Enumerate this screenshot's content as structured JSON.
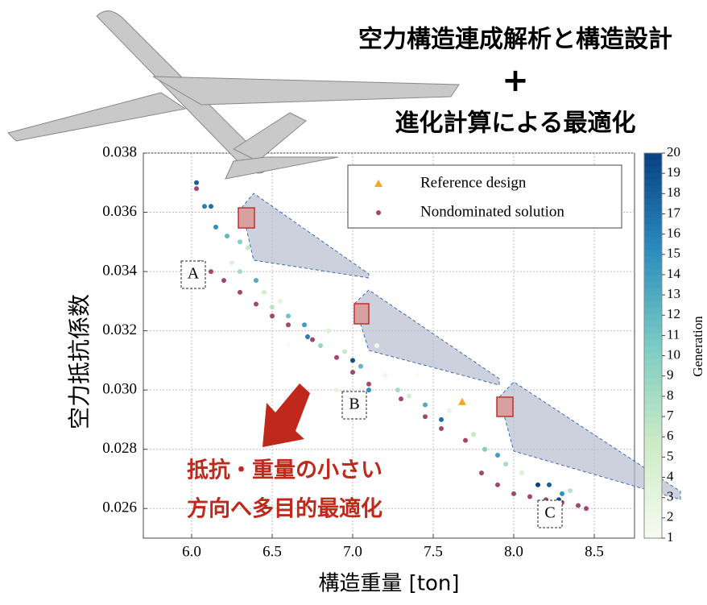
{
  "chart_data": {
    "type": "scatter",
    "title": [
      "空力構造連成解析と構造設計",
      "+",
      "進化計算による最適化"
    ],
    "x_label": "構造重量 [ton]",
    "y_label": "空力抵抗係数",
    "xlim": [
      5.7,
      8.75
    ],
    "xticks": [
      {
        "value": 6,
        "label": "6.0"
      },
      6.5,
      {
        "value": 7,
        "label": "7.0"
      },
      7.5,
      {
        "value": 8,
        "label": "8.0"
      },
      8.5
    ],
    "ylim": [
      0.025,
      0.038
    ],
    "yticks": [
      0.026,
      0.028,
      {
        "value": 0.03,
        "label": "0.030"
      },
      0.032,
      0.034,
      0.036,
      0.038
    ],
    "grid": true,
    "legend": "upper right",
    "series": [
      {
        "name": "Reference design",
        "color": "#f5a623",
        "marker": "triangle",
        "x": [
          7.68
        ],
        "values": [
          0.0296
        ]
      },
      {
        "name": "Nondominated solution",
        "color": "#a3466e",
        "marker": "circle",
        "x": [
          6.03,
          6.05,
          6.12,
          6.2,
          6.3,
          6.4,
          6.5,
          6.6,
          6.75,
          6.9,
          7.0,
          7.1,
          7.3,
          7.45,
          7.55,
          7.7,
          7.8,
          7.9,
          8.0,
          8.1,
          8.2,
          8.3,
          8.4,
          8.45
        ],
        "values": [
          0.0368,
          0.0343,
          0.034,
          0.0337,
          0.0333,
          0.0329,
          0.0325,
          0.0322,
          0.0317,
          0.0311,
          0.0306,
          0.0302,
          0.0297,
          0.0291,
          0.0287,
          0.0283,
          0.0272,
          0.0268,
          0.0265,
          0.0264,
          0.0263,
          0.0262,
          0.0261,
          0.026
        ]
      }
    ],
    "generations": {
      "x": [
        6.03,
        6.08,
        6.12,
        6.15,
        6.22,
        6.3,
        6.35,
        6.25,
        6.3,
        6.4,
        6.45,
        6.5,
        6.55,
        6.6,
        6.7,
        6.72,
        6.8,
        6.85,
        6.95,
        7.0,
        7.05,
        7.1,
        7.2,
        7.28,
        7.35,
        7.45,
        7.55,
        7.6,
        7.75,
        7.82,
        7.9,
        7.95,
        8.05,
        8.15,
        8.22,
        8.3,
        8.35,
        8.28,
        6.6,
        7.15,
        7.4,
        6.9
      ],
      "values": [
        0.037,
        0.0362,
        0.0362,
        0.0355,
        0.0352,
        0.035,
        0.0348,
        0.0343,
        0.034,
        0.0337,
        0.0333,
        0.0328,
        0.033,
        0.0325,
        0.0322,
        0.0318,
        0.0315,
        0.032,
        0.0313,
        0.031,
        0.0308,
        0.03,
        0.0305,
        0.03,
        0.0298,
        0.0295,
        0.029,
        0.0293,
        0.0285,
        0.028,
        0.0278,
        0.0275,
        0.0272,
        0.0268,
        0.0268,
        0.0265,
        0.0266,
        0.0263,
        0.0315,
        0.0315,
        0.0305,
        0.03
      ],
      "generation": [
        18,
        16,
        17,
        15,
        12,
        10,
        6,
        4,
        8,
        13,
        5,
        7,
        3,
        11,
        14,
        16,
        9,
        4,
        6,
        19,
        12,
        15,
        2,
        8,
        5,
        13,
        17,
        3,
        6,
        10,
        14,
        8,
        4,
        20,
        18,
        15,
        7,
        19,
        1,
        2,
        1,
        3
      ]
    },
    "colorbar": {
      "label": "Generation",
      "lim": [
        1,
        20
      ],
      "ticks": [
        1,
        2,
        3,
        4,
        5,
        6,
        7,
        8,
        9,
        10,
        11,
        12,
        13,
        14,
        15,
        16,
        17,
        18,
        19,
        20
      ],
      "colors": [
        "#f7fcf0",
        "#ccebc5",
        "#7bccc4",
        "#2b8cbe",
        "#084081"
      ]
    },
    "labels": [
      "A",
      "B",
      "C"
    ],
    "annotation": [
      "抵抗・重量の小さい",
      "方向へ多目的最適化"
    ]
  }
}
